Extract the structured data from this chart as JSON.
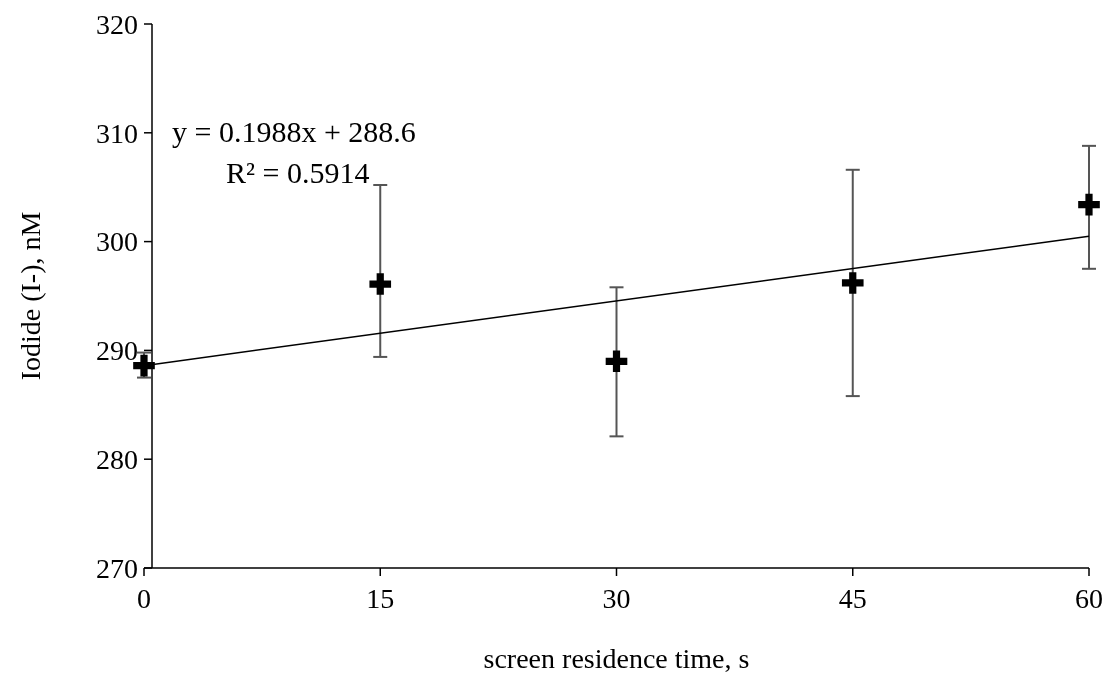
{
  "chart_data": {
    "type": "scatter",
    "xlabel": "screen residence time, s",
    "ylabel": "Iodide (I-), nM",
    "x": [
      0,
      15,
      30,
      45,
      60
    ],
    "xlim": [
      0,
      60
    ],
    "xticks": [
      0,
      15,
      30,
      45,
      60
    ],
    "ylim": [
      270,
      320
    ],
    "yticks": [
      270,
      280,
      290,
      300,
      310,
      320
    ],
    "marker": "cross",
    "grid": false,
    "series": [
      {
        "color": "#000000",
        "values": [
          288.6,
          296.1,
          289.0,
          296.2,
          303.4
        ],
        "errors": [
          [
            287.5,
            289.8
          ],
          [
            289.4,
            305.2
          ],
          [
            282.1,
            295.8
          ],
          [
            285.8,
            306.6
          ],
          [
            297.5,
            308.8
          ]
        ]
      },
      {
        "type": "line",
        "color": "#000000",
        "x": [
          0,
          60
        ],
        "values": [
          288.6,
          300.5
        ],
        "marker": "none",
        "line_style": "solid"
      }
    ],
    "annotations": [
      "y = 0.1988x + 288.6",
      "R² = 0.5914"
    ]
  }
}
